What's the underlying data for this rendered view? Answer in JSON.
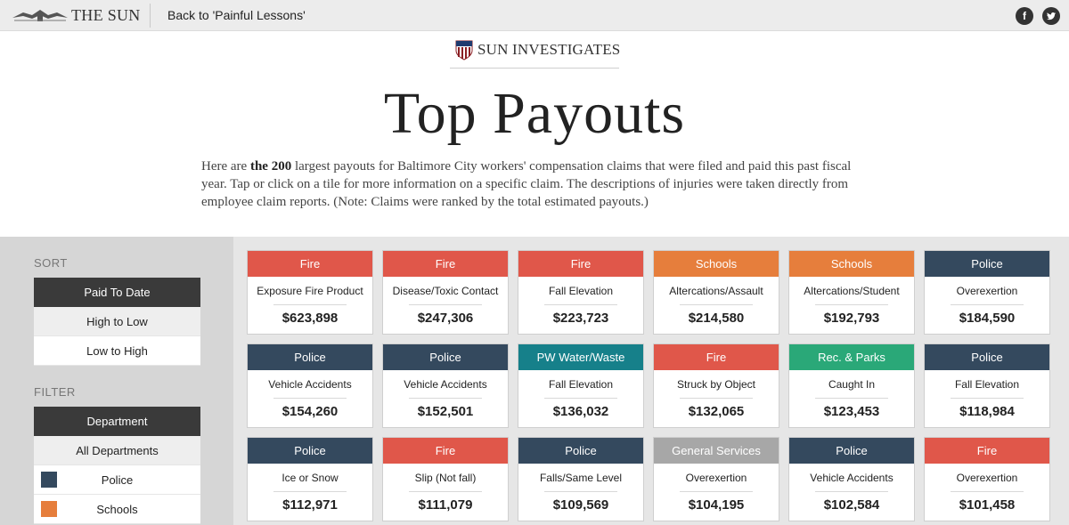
{
  "topbar": {
    "logo_text": "THE SUN",
    "back_label": "Back to 'Painful Lessons'",
    "social": {
      "facebook": "f",
      "twitter": "t"
    }
  },
  "header": {
    "brand": "SUN INVESTIGATES",
    "title": "Top Payouts",
    "intro_pre": "Here are ",
    "intro_bold": "the 200",
    "intro_post": " largest payouts for Baltimore City workers' compensation claims that were filed and paid this past fiscal year. Tap or click on a tile for more information on a specific claim. The descriptions of injuries were taken directly from employee claim reports. (Note: Claims were ranked by the total estimated payouts.)"
  },
  "sidebar": {
    "sort_heading": "SORT",
    "sort_active": "Paid To Date",
    "sort_options": [
      "High to Low",
      "Low to High"
    ],
    "filter_heading": "FILTER",
    "filter_active": "Department",
    "filter_all": "All Departments",
    "legend": [
      {
        "label": "Police",
        "color": "#34495e"
      },
      {
        "label": "Schools",
        "color": "#e67e3c"
      }
    ]
  },
  "colors": {
    "Fire": "#e0574a",
    "Schools": "#e67e3c",
    "Police": "#34495e",
    "PW Water/Waste": "#16808a",
    "Rec. & Parks": "#2aa878",
    "General Services": "#a7a7a7"
  },
  "tiles": [
    {
      "dept": "Fire",
      "desc": "Exposure Fire Product",
      "amount": "$623,898"
    },
    {
      "dept": "Fire",
      "desc": "Disease/Toxic Contact",
      "amount": "$247,306"
    },
    {
      "dept": "Fire",
      "desc": "Fall Elevation",
      "amount": "$223,723"
    },
    {
      "dept": "Schools",
      "desc": "Altercations/Assault",
      "amount": "$214,580"
    },
    {
      "dept": "Schools",
      "desc": "Altercations/Student",
      "amount": "$192,793"
    },
    {
      "dept": "Police",
      "desc": "Overexertion",
      "amount": "$184,590"
    },
    {
      "dept": "Police",
      "desc": "Vehicle Accidents",
      "amount": "$154,260"
    },
    {
      "dept": "Police",
      "desc": "Vehicle Accidents",
      "amount": "$152,501"
    },
    {
      "dept": "PW Water/Waste",
      "desc": "Fall Elevation",
      "amount": "$136,032"
    },
    {
      "dept": "Fire",
      "desc": "Struck by Object",
      "amount": "$132,065"
    },
    {
      "dept": "Rec. & Parks",
      "desc": "Caught In",
      "amount": "$123,453"
    },
    {
      "dept": "Police",
      "desc": "Fall Elevation",
      "amount": "$118,984"
    },
    {
      "dept": "Police",
      "desc": "Ice or Snow",
      "amount": "$112,971"
    },
    {
      "dept": "Fire",
      "desc": "Slip (Not fall)",
      "amount": "$111,079"
    },
    {
      "dept": "Police",
      "desc": "Falls/Same Level",
      "amount": "$109,569"
    },
    {
      "dept": "General Services",
      "desc": "Overexertion",
      "amount": "$104,195"
    },
    {
      "dept": "Police",
      "desc": "Vehicle Accidents",
      "amount": "$102,584"
    },
    {
      "dept": "Fire",
      "desc": "Overexertion",
      "amount": "$101,458"
    }
  ]
}
